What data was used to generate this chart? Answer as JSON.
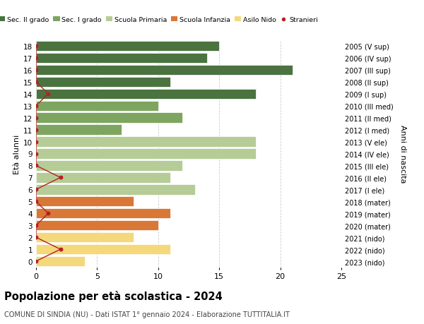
{
  "ages": [
    18,
    17,
    16,
    15,
    14,
    13,
    12,
    11,
    10,
    9,
    8,
    7,
    6,
    5,
    4,
    3,
    2,
    1,
    0
  ],
  "years": [
    "2005 (V sup)",
    "2006 (IV sup)",
    "2007 (III sup)",
    "2008 (II sup)",
    "2009 (I sup)",
    "2010 (III med)",
    "2011 (II med)",
    "2012 (I med)",
    "2013 (V ele)",
    "2014 (IV ele)",
    "2015 (III ele)",
    "2016 (II ele)",
    "2017 (I ele)",
    "2018 (mater)",
    "2019 (mater)",
    "2020 (mater)",
    "2021 (nido)",
    "2022 (nido)",
    "2023 (nido)"
  ],
  "values": [
    15,
    14,
    21,
    11,
    18,
    10,
    12,
    7,
    18,
    18,
    12,
    11,
    13,
    8,
    11,
    10,
    8,
    11,
    4
  ],
  "stranieri": [
    0,
    0,
    0,
    0,
    1,
    0,
    0,
    0,
    0,
    0,
    0,
    2,
    0,
    0,
    1,
    0,
    0,
    2,
    0
  ],
  "bar_colors": [
    "#4a7340",
    "#4a7340",
    "#4a7340",
    "#4a7340",
    "#4a7340",
    "#7da55f",
    "#7da55f",
    "#7da55f",
    "#b5cc96",
    "#b5cc96",
    "#b5cc96",
    "#b5cc96",
    "#b5cc96",
    "#d97736",
    "#d97736",
    "#d97736",
    "#f5d87a",
    "#f5d87a",
    "#f5d87a"
  ],
  "legend_labels": [
    "Sec. II grado",
    "Sec. I grado",
    "Scuola Primaria",
    "Scuola Infanzia",
    "Asilo Nido",
    "Stranieri"
  ],
  "legend_colors": [
    "#4a7340",
    "#7da55f",
    "#b5cc96",
    "#d97736",
    "#f5d87a",
    "#b22222"
  ],
  "stranieri_color": "#b22222",
  "title": "Popolazione per età scolastica - 2024",
  "subtitle": "COMUNE DI SINDIA (NU) - Dati ISTAT 1° gennaio 2024 - Elaborazione TUTTITALIA.IT",
  "ylabel_left": "Età alunni",
  "ylabel_right": "Anni di nascita",
  "xlim": [
    0,
    25
  ],
  "xticks": [
    0,
    5,
    10,
    15,
    20,
    25
  ],
  "background_color": "#ffffff",
  "grid_color": "#cccccc"
}
